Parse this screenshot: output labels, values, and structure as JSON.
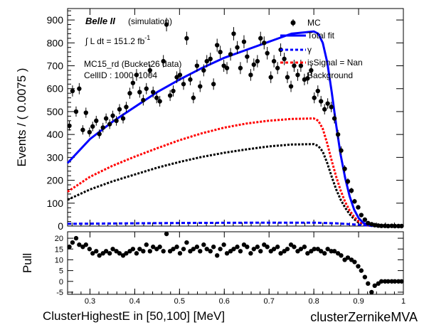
{
  "chart_data": [
    {
      "type": "scatter",
      "ylabel": "Events / ( 0.0075 )",
      "xlim": [
        0.25,
        1.0
      ],
      "ylim": [
        0,
        950
      ],
      "y_ticks": [
        0,
        100,
        200,
        300,
        400,
        500,
        600,
        700,
        800,
        900
      ],
      "annotations": {
        "experiment": "Belle II",
        "mode": "(simulation)",
        "lumi_prefix": "∫ L dt = 151.2 fb",
        "lumi_exp": "-1",
        "sample": "MC15_rd (Bucket26 data)",
        "cell": "CellID : 1000~1004"
      },
      "legend": {
        "position": "top-right",
        "entries": [
          {
            "label": "MC",
            "style": "marker",
            "color": "#000000"
          },
          {
            "label": "Total fit",
            "style": "line",
            "color": "#0000ff"
          },
          {
            "label": "γ",
            "style": "dashed",
            "color": "#0000ff"
          },
          {
            "label": "isSignal = Nan",
            "style": "dashed",
            "color": "#ff0000"
          },
          {
            "label": "Background",
            "style": "none",
            "color": "#000000"
          }
        ]
      },
      "series": [
        {
          "name": "MC",
          "color": "#000000",
          "x": [
            0.254,
            0.261,
            0.269,
            0.276,
            0.284,
            0.291,
            0.299,
            0.306,
            0.314,
            0.321,
            0.329,
            0.336,
            0.344,
            0.351,
            0.359,
            0.366,
            0.374,
            0.381,
            0.389,
            0.396,
            0.404,
            0.411,
            0.419,
            0.426,
            0.434,
            0.441,
            0.449,
            0.456,
            0.464,
            0.471,
            0.479,
            0.486,
            0.494,
            0.501,
            0.509,
            0.516,
            0.524,
            0.531,
            0.539,
            0.546,
            0.554,
            0.561,
            0.569,
            0.576,
            0.584,
            0.591,
            0.599,
            0.606,
            0.614,
            0.621,
            0.629,
            0.636,
            0.644,
            0.651,
            0.659,
            0.666,
            0.674,
            0.681,
            0.689,
            0.696,
            0.704,
            0.711,
            0.719,
            0.726,
            0.734,
            0.741,
            0.749,
            0.756,
            0.764,
            0.771,
            0.779,
            0.786,
            0.794,
            0.801,
            0.809,
            0.816,
            0.824,
            0.831,
            0.839,
            0.846,
            0.854,
            0.861,
            0.869,
            0.876,
            0.884,
            0.891,
            0.899,
            0.906,
            0.914,
            0.921,
            0.929,
            0.936,
            0.944,
            0.951,
            0.959,
            0.966,
            0.974,
            0.981,
            0.989,
            0.996
          ],
          "y": [
            438,
            590,
            500,
            600,
            420,
            495,
            410,
            435,
            460,
            402,
            430,
            470,
            445,
            482,
            460,
            510,
            470,
            520,
            580,
            625,
            660,
            585,
            550,
            600,
            680,
            585,
            560,
            545,
            720,
            880,
            570,
            590,
            650,
            660,
            620,
            820,
            640,
            560,
            700,
            610,
            680,
            720,
            730,
            620,
            790,
            760,
            700,
            690,
            750,
            840,
            780,
            690,
            805,
            740,
            660,
            705,
            720,
            820,
            800,
            755,
            650,
            720,
            690,
            770,
            730,
            650,
            610,
            700,
            660,
            700,
            640,
            645,
            680,
            560,
            590,
            545,
            510,
            535,
            520,
            470,
            400,
            330,
            250,
            195,
            155,
            108,
            82,
            48,
            28,
            13,
            8,
            4,
            2,
            1,
            1,
            0,
            1,
            0,
            0,
            0
          ]
        },
        {
          "name": "Total fit",
          "color": "#0000ff",
          "x": [
            0.25,
            0.3,
            0.35,
            0.4,
            0.45,
            0.5,
            0.55,
            0.6,
            0.65,
            0.7,
            0.75,
            0.8,
            0.81,
            0.82,
            0.83,
            0.84,
            0.85,
            0.86,
            0.87,
            0.88,
            0.89,
            0.9,
            0.91,
            0.92,
            0.93,
            0.94,
            0.96,
            0.98,
            1.0
          ],
          "y": [
            275,
            380,
            455,
            520,
            585,
            640,
            690,
            735,
            770,
            805,
            840,
            850,
            840,
            800,
            715,
            585,
            440,
            310,
            210,
            130,
            72,
            35,
            15,
            6,
            2,
            1,
            0,
            0,
            0
          ]
        },
        {
          "name": "γ",
          "color": "#0000ff",
          "x": [
            0.25,
            0.4,
            0.55,
            0.7,
            0.8,
            0.85,
            0.9,
            0.93,
            1.0
          ],
          "y": [
            10,
            12,
            14,
            15,
            15,
            12,
            6,
            1,
            0
          ]
        },
        {
          "name": "isSignal = Nan",
          "color": "#ff0000",
          "x": [
            0.25,
            0.3,
            0.35,
            0.4,
            0.45,
            0.5,
            0.55,
            0.6,
            0.65,
            0.7,
            0.75,
            0.8,
            0.81,
            0.82,
            0.83,
            0.84,
            0.85,
            0.86,
            0.87,
            0.88,
            0.89,
            0.9,
            0.91,
            0.92,
            0.93,
            0.94,
            0.96,
            0.98,
            1.0
          ],
          "y": [
            150,
            215,
            263,
            303,
            340,
            375,
            405,
            430,
            448,
            460,
            468,
            470,
            460,
            425,
            360,
            285,
            215,
            155,
            105,
            68,
            40,
            20,
            9,
            4,
            2,
            1,
            0,
            0,
            0
          ]
        },
        {
          "name": "Background",
          "color": "#000000",
          "x": [
            0.25,
            0.3,
            0.35,
            0.4,
            0.45,
            0.5,
            0.55,
            0.6,
            0.65,
            0.7,
            0.75,
            0.8,
            0.81,
            0.82,
            0.83,
            0.84,
            0.85,
            0.86,
            0.87,
            0.88,
            0.89,
            0.9,
            0.91,
            0.92,
            0.93,
            0.94,
            0.96,
            0.98,
            1.0
          ],
          "y": [
            115,
            160,
            195,
            225,
            255,
            280,
            302,
            320,
            335,
            348,
            356,
            358,
            350,
            325,
            275,
            215,
            160,
            115,
            80,
            52,
            30,
            15,
            7,
            3,
            1,
            0,
            0,
            0,
            0
          ]
        }
      ]
    },
    {
      "type": "scatter",
      "ylabel": "Pull",
      "xlabel": "ClusterHighestE in [50,100] [MeV]",
      "xlabel_right": "clusterZernikeMVA",
      "xlim": [
        0.25,
        1.0
      ],
      "ylim": [
        -6,
        23
      ],
      "y_ticks": [
        -5,
        0,
        5,
        10,
        15,
        20
      ],
      "x_ticks": [
        0.3,
        0.4,
        0.5,
        0.6,
        0.7,
        0.8,
        0.9,
        1
      ],
      "series": [
        {
          "name": "Pull",
          "color": "#000000",
          "x": [
            0.254,
            0.261,
            0.269,
            0.276,
            0.284,
            0.291,
            0.299,
            0.306,
            0.314,
            0.321,
            0.329,
            0.336,
            0.344,
            0.351,
            0.359,
            0.366,
            0.374,
            0.381,
            0.389,
            0.396,
            0.404,
            0.411,
            0.419,
            0.426,
            0.434,
            0.441,
            0.449,
            0.456,
            0.464,
            0.471,
            0.479,
            0.486,
            0.494,
            0.501,
            0.509,
            0.516,
            0.524,
            0.531,
            0.539,
            0.546,
            0.554,
            0.561,
            0.569,
            0.576,
            0.584,
            0.591,
            0.599,
            0.606,
            0.614,
            0.621,
            0.629,
            0.636,
            0.644,
            0.651,
            0.659,
            0.666,
            0.674,
            0.681,
            0.689,
            0.696,
            0.704,
            0.711,
            0.719,
            0.726,
            0.734,
            0.741,
            0.749,
            0.756,
            0.764,
            0.771,
            0.779,
            0.786,
            0.794,
            0.801,
            0.809,
            0.816,
            0.824,
            0.831,
            0.839,
            0.846,
            0.854,
            0.861,
            0.869,
            0.876,
            0.884,
            0.891,
            0.899,
            0.906,
            0.914,
            0.921,
            0.929,
            0.936,
            0.944,
            0.951,
            0.959,
            0.966,
            0.974,
            0.981,
            0.989,
            0.996
          ],
          "y": [
            16,
            18,
            20,
            17,
            16,
            17,
            15,
            13,
            14,
            12,
            13,
            14,
            13,
            15,
            14,
            13,
            12,
            13,
            14,
            15,
            13,
            15,
            14,
            17,
            14,
            16,
            15,
            16,
            14,
            22,
            14,
            15,
            16,
            13,
            15,
            18,
            14,
            15,
            16,
            14,
            17,
            15,
            14,
            16,
            12,
            15,
            17,
            13,
            14,
            15,
            16,
            14,
            17,
            16,
            13,
            15,
            16,
            14,
            17,
            16,
            14,
            15,
            16,
            13,
            14,
            15,
            17,
            16,
            14,
            15,
            16,
            13,
            14,
            15,
            15,
            14,
            13,
            15,
            14,
            14,
            13,
            12,
            10,
            11,
            10,
            9,
            7,
            5,
            2,
            -1,
            -5,
            -2,
            -1,
            0,
            0,
            0,
            0,
            0,
            0,
            0
          ]
        }
      ]
    }
  ]
}
